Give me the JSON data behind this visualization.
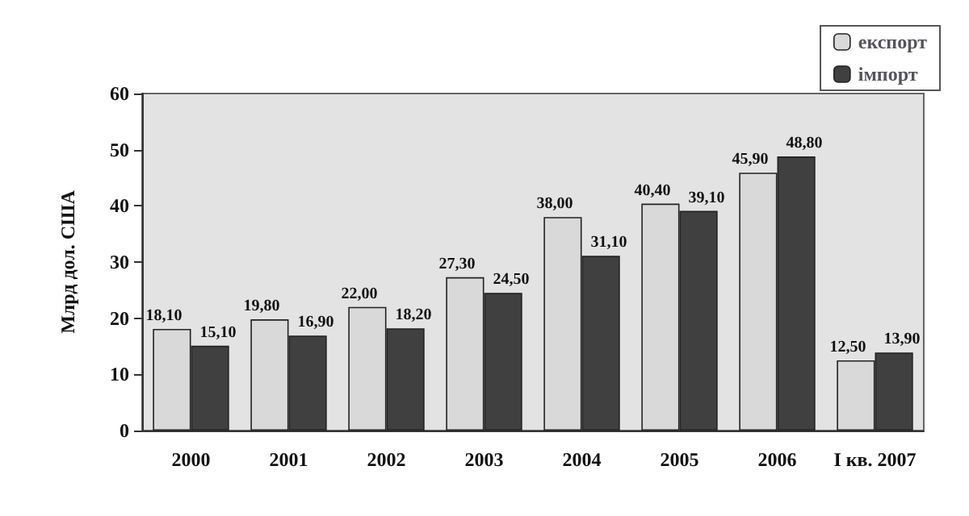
{
  "chart_data": {
    "type": "bar",
    "ylabel": "Млрд дол. США",
    "categories": [
      "2000",
      "2001",
      "2002",
      "2003",
      "2004",
      "2005",
      "2006",
      "I кв. 2007"
    ],
    "series": [
      {
        "name": "експорт",
        "color": "#d9d9d9",
        "values": [
          18.1,
          19.8,
          22.0,
          27.3,
          38.0,
          40.4,
          45.9,
          12.5
        ],
        "value_labels": [
          "18,10",
          "19,80",
          "22,00",
          "27,30",
          "38,00",
          "40,40",
          "45,90",
          "12,50"
        ]
      },
      {
        "name": "імпорт",
        "color": "#404040",
        "values": [
          15.1,
          16.9,
          18.2,
          24.5,
          31.1,
          39.1,
          48.8,
          13.9
        ],
        "value_labels": [
          "15,10",
          "16,90",
          "18,20",
          "24,50",
          "31,10",
          "39,10",
          "48,80",
          "13,90"
        ]
      }
    ],
    "ylim": [
      0,
      60
    ],
    "yticks": [
      0,
      10,
      20,
      30,
      40,
      50,
      60
    ],
    "grid": false,
    "legend": "top right"
  }
}
